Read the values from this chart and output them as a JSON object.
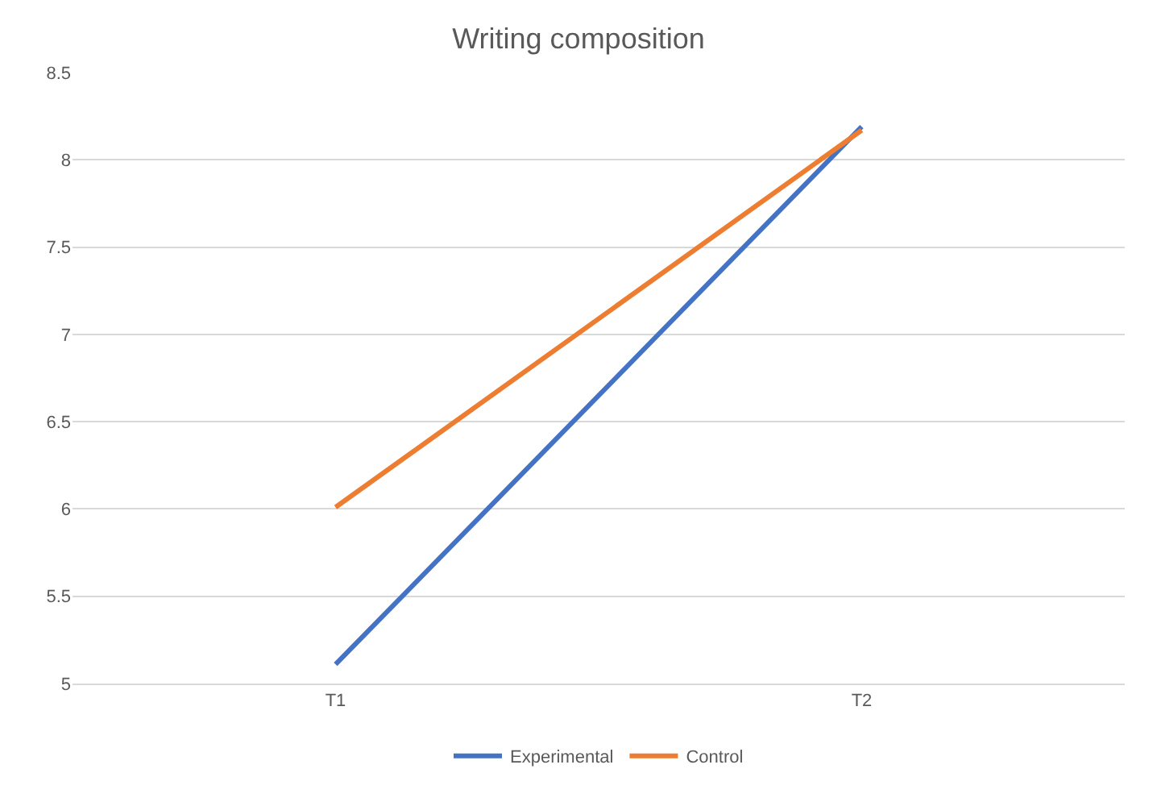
{
  "chart_data": {
    "type": "line",
    "title": "Writing composition",
    "categories": [
      "T1",
      "T2"
    ],
    "series": [
      {
        "name": "Experimental",
        "color": "#4472c4",
        "values": [
          5.11,
          8.19
        ]
      },
      {
        "name": "Control",
        "color": "#ed7d31",
        "values": [
          6.01,
          8.17
        ]
      }
    ],
    "ylim": [
      5,
      8.5
    ],
    "yticks": [
      5,
      5.5,
      6,
      6.5,
      7,
      7.5,
      8,
      8.5
    ],
    "grid": "y",
    "legend": "bottom",
    "marker": "none",
    "line_style": "solid"
  }
}
